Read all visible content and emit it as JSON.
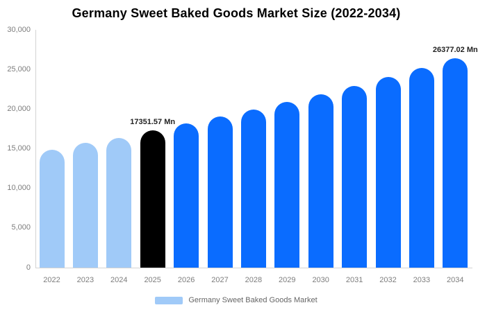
{
  "chart_data": {
    "type": "bar",
    "title": "Germany Sweet Baked Goods Market Size (2022-2034)",
    "unit": "Mn",
    "xlabel": "",
    "ylabel": "",
    "categories": [
      "2022",
      "2023",
      "2024",
      "2025",
      "2026",
      "2027",
      "2028",
      "2029",
      "2030",
      "2031",
      "2032",
      "2033",
      "2034"
    ],
    "values": [
      14900,
      15700,
      16350,
      17351.57,
      18178,
      19044,
      19951,
      20901,
      21897,
      22940,
      24033,
      25178,
      26377.02
    ],
    "point_roles": [
      "historical",
      "historical",
      "historical",
      "base_year",
      "forecast",
      "forecast",
      "forecast",
      "forecast",
      "forecast",
      "forecast",
      "forecast",
      "forecast",
      "forecast"
    ],
    "data_labels": [
      "",
      "",
      "",
      "17351.57 Mn",
      "",
      "",
      "",
      "",
      "",
      "",
      "",
      "",
      "26377.02 Mn"
    ],
    "ylim": [
      0,
      30000
    ],
    "y_ticks": [
      {
        "value": 0,
        "label": "0"
      },
      {
        "value": 5000,
        "label": "5,000"
      },
      {
        "value": 10000,
        "label": "10,000"
      },
      {
        "value": 15000,
        "label": "15,000"
      },
      {
        "value": 20000,
        "label": "20,000"
      },
      {
        "value": 25000,
        "label": "25,000"
      },
      {
        "value": 30000,
        "label": "30,000"
      }
    ],
    "grid": false,
    "legend_position": "bottom",
    "colors": {
      "historical": "#A0CAF8",
      "base_year": "#000000",
      "forecast": "#0A6CFF"
    }
  },
  "legend": {
    "label": "Germany Sweet Baked Goods Market",
    "swatch_color": "#A0CAF8"
  }
}
